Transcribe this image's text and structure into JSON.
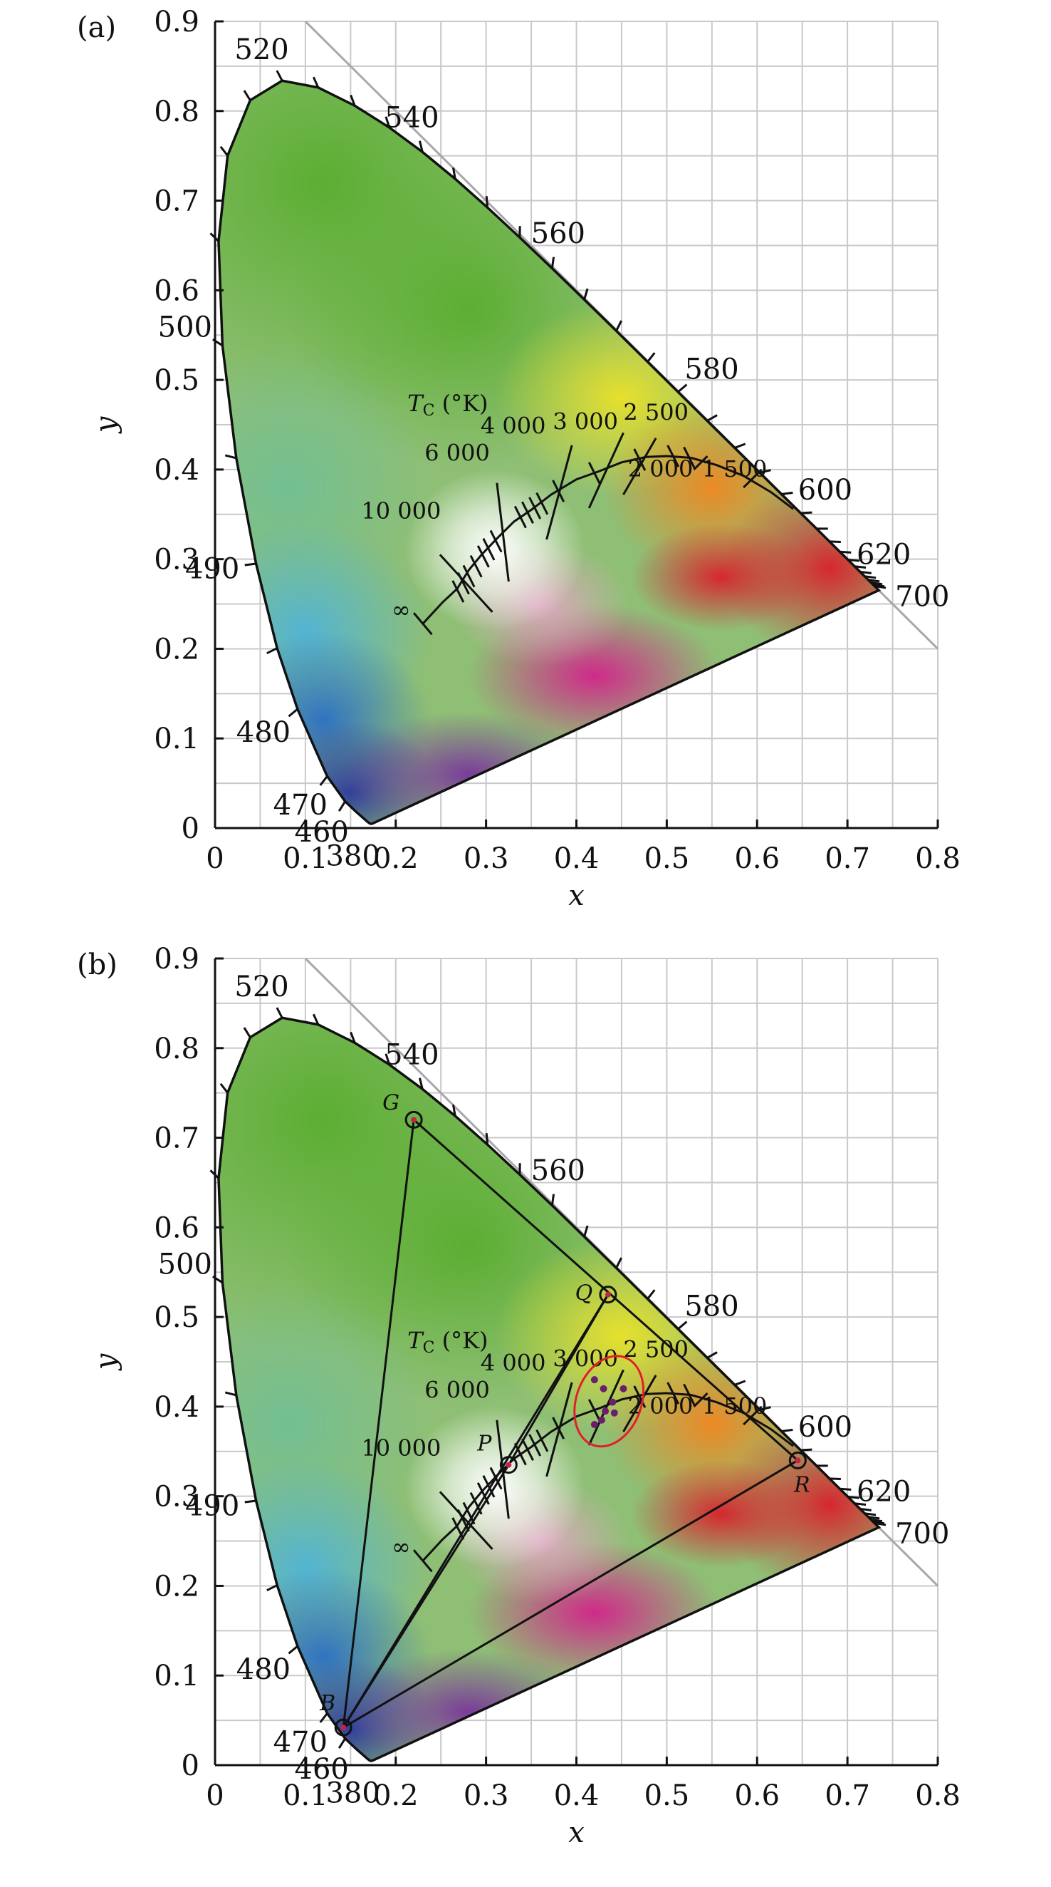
{
  "figure": {
    "panels": [
      {
        "label": "(a)",
        "xlabel": "x",
        "ylabel": "y",
        "xticks": [
          "0",
          "0.1",
          "0.2",
          "0.3",
          "0.4",
          "0.5",
          "0.6",
          "0.7",
          "0.8"
        ],
        "yticks": [
          "0",
          "0.1",
          "0.2",
          "0.3",
          "0.4",
          "0.5",
          "0.6",
          "0.7",
          "0.8",
          "0.9"
        ],
        "wavelengths": [
          {
            "text": "380",
            "x": 0.1741,
            "y": 0.005
          },
          {
            "text": "460",
            "x": 0.144,
            "y": 0.0297
          },
          {
            "text": "470",
            "x": 0.1241,
            "y": 0.0578
          },
          {
            "text": "480",
            "x": 0.0913,
            "y": 0.1327
          },
          {
            "text": "490",
            "x": 0.0454,
            "y": 0.295
          },
          {
            "text": "500",
            "x": 0.0082,
            "y": 0.5384
          },
          {
            "text": "520",
            "x": 0.0743,
            "y": 0.8338
          },
          {
            "text": "540",
            "x": 0.2296,
            "y": 0.7543
          },
          {
            "text": "560",
            "x": 0.3731,
            "y": 0.6245
          },
          {
            "text": "580",
            "x": 0.5125,
            "y": 0.4866
          },
          {
            "text": "600",
            "x": 0.627,
            "y": 0.3725
          },
          {
            "text": "620",
            "x": 0.6915,
            "y": 0.3083
          },
          {
            "text": "700",
            "x": 0.7347,
            "y": 0.2653
          }
        ],
        "cct_title": "T",
        "cct_title_sub": "C",
        "cct_title_unit": " (°K)",
        "cct_labels": [
          "∞",
          "10 000",
          "6 000",
          "4 000",
          "3 000",
          "2 500",
          "2 000",
          "1 500"
        ]
      },
      {
        "label": "(b)",
        "xlabel": "x",
        "ylabel": "y",
        "xticks": [
          "0",
          "0.1",
          "0.2",
          "0.3",
          "0.4",
          "0.5",
          "0.6",
          "0.7",
          "0.8"
        ],
        "yticks": [
          "0",
          "0.1",
          "0.2",
          "0.3",
          "0.4",
          "0.5",
          "0.6",
          "0.7",
          "0.8",
          "0.9"
        ],
        "wavelengths": [
          {
            "text": "380",
            "x": 0.1741,
            "y": 0.005
          },
          {
            "text": "460",
            "x": 0.144,
            "y": 0.0297
          },
          {
            "text": "470",
            "x": 0.1241,
            "y": 0.0578
          },
          {
            "text": "480",
            "x": 0.0913,
            "y": 0.1327
          },
          {
            "text": "490",
            "x": 0.0454,
            "y": 0.295
          },
          {
            "text": "500",
            "x": 0.0082,
            "y": 0.5384
          },
          {
            "text": "520",
            "x": 0.0743,
            "y": 0.8338
          },
          {
            "text": "540",
            "x": 0.2296,
            "y": 0.7543
          },
          {
            "text": "560",
            "x": 0.3731,
            "y": 0.6245
          },
          {
            "text": "580",
            "x": 0.5125,
            "y": 0.4866
          },
          {
            "text": "600",
            "x": 0.627,
            "y": 0.3725
          },
          {
            "text": "620",
            "x": 0.6915,
            "y": 0.3083
          },
          {
            "text": "700",
            "x": 0.7347,
            "y": 0.2653
          }
        ],
        "cct_title": "T",
        "cct_title_sub": "C",
        "cct_title_unit": " (°K)",
        "cct_labels": [
          "∞",
          "10 000",
          "6 000",
          "4 000",
          "3 000",
          "2 500",
          "2 000",
          "1 500"
        ],
        "points": [
          {
            "name": "G",
            "x": 0.22,
            "y": 0.72
          },
          {
            "name": "Q",
            "x": 0.435,
            "y": 0.525
          },
          {
            "name": "P",
            "x": 0.325,
            "y": 0.335
          },
          {
            "name": "R",
            "x": 0.645,
            "y": 0.34
          },
          {
            "name": "B",
            "x": 0.142,
            "y": 0.042
          }
        ],
        "cluster": [
          {
            "x": 0.42,
            "y": 0.43
          },
          {
            "x": 0.43,
            "y": 0.42
          },
          {
            "x": 0.452,
            "y": 0.42
          },
          {
            "x": 0.44,
            "y": 0.405
          },
          {
            "x": 0.432,
            "y": 0.395
          },
          {
            "x": 0.442,
            "y": 0.393
          },
          {
            "x": 0.428,
            "y": 0.385
          },
          {
            "x": 0.42,
            "y": 0.38
          }
        ]
      }
    ]
  },
  "chart_data": [
    {
      "type": "scatter",
      "title": "",
      "xlabel": "x",
      "ylabel": "y",
      "xlim": [
        0,
        0.8
      ],
      "ylim": [
        0,
        0.9
      ],
      "grid": true,
      "series": [],
      "annotations": [
        "380",
        "460",
        "470",
        "480",
        "490",
        "500",
        "520",
        "540",
        "560",
        "580",
        "600",
        "620",
        "700",
        "∞",
        "10 000",
        "6 000",
        "4 000",
        "3 000",
        "2 500",
        "2 000",
        "1 500"
      ]
    },
    {
      "type": "scatter",
      "title": "",
      "xlabel": "x",
      "ylabel": "y",
      "xlim": [
        0,
        0.8
      ],
      "ylim": [
        0,
        0.9
      ],
      "grid": true,
      "series": [
        {
          "name": "",
          "x": [
            0.22,
            0.435,
            0.325,
            0.645,
            0.142
          ],
          "y": [
            0.72,
            0.525,
            0.335,
            0.34,
            0.042
          ],
          "labels": [
            "G",
            "Q",
            "P",
            "R",
            "B"
          ]
        },
        {
          "name": "",
          "x": [
            0.42,
            0.43,
            0.452,
            0.44,
            0.432,
            0.442,
            0.428,
            0.42
          ],
          "y": [
            0.43,
            0.42,
            0.42,
            0.405,
            0.395,
            0.393,
            0.385,
            0.38
          ]
        }
      ],
      "annotations": [
        "G",
        "Q",
        "P",
        "R",
        "B"
      ]
    }
  ]
}
